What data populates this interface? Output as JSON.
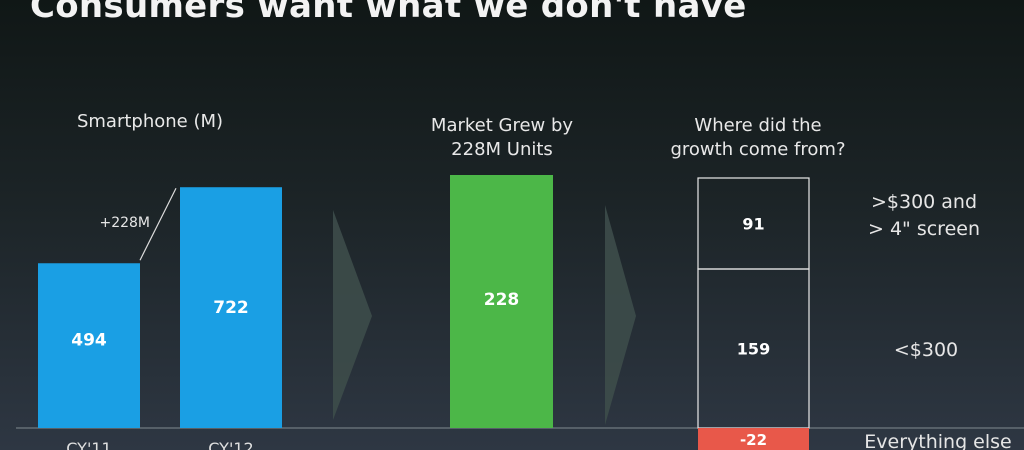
{
  "slide": {
    "title": "Consumers want what we don't have"
  },
  "chart_data": [
    {
      "type": "bar",
      "title": "Smartphone (M)",
      "categories": [
        "CY'11",
        "CY'12"
      ],
      "values": [
        494,
        722
      ],
      "annotation": "+228M",
      "color": "#1a9fe4"
    },
    {
      "type": "bar",
      "title_lines": [
        "Market Grew by",
        "228M Units"
      ],
      "values": [
        228
      ],
      "color": "#4cb748"
    },
    {
      "type": "bar",
      "title_lines": [
        "Where did the",
        "growth come from?"
      ],
      "segments": [
        {
          "value": 91,
          "label_lines": [
            ">$300 and",
            "> 4\" screen"
          ]
        },
        {
          "value": 159,
          "label_lines": [
            "<$300"
          ]
        },
        {
          "value": -22,
          "label_lines": [
            "Everything else"
          ],
          "color": "#e8584a"
        }
      ]
    }
  ]
}
